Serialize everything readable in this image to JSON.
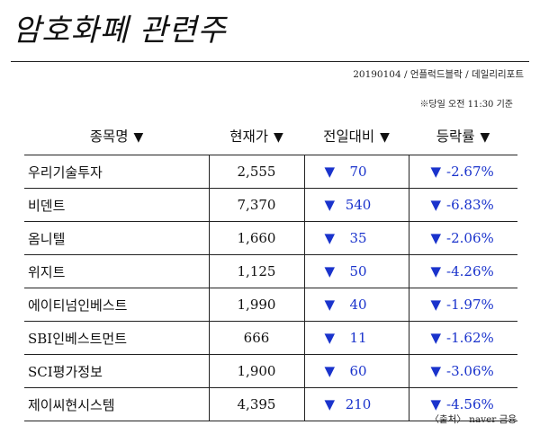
{
  "title": "암호화폐 관련주",
  "meta": "20190104 / 언플럭드블락 / 데일리리포트",
  "as_of": "※당일 오전 11:30 기준",
  "headers": [
    "종목명",
    "현재가",
    "전일대비",
    "등락률"
  ],
  "header_arrow": "▼",
  "down_arrow": "▼",
  "rows": [
    {
      "name": "우리기술투자",
      "price": "2,555",
      "change": "70",
      "rate": "-2.67%"
    },
    {
      "name": "비덴트",
      "price": "7,370",
      "change": "540",
      "rate": "-6.83%"
    },
    {
      "name": "옴니텔",
      "price": "1,660",
      "change": "35",
      "rate": "-2.06%"
    },
    {
      "name": "위지트",
      "price": "1,125",
      "change": "50",
      "rate": "-4.26%"
    },
    {
      "name": "에이티넘인베스트",
      "price": "1,990",
      "change": "40",
      "rate": "-1.97%"
    },
    {
      "name": "SBI인베스트먼트",
      "price": "666",
      "change": "11",
      "rate": "-1.62%"
    },
    {
      "name": "SCI평가정보",
      "price": "1,900",
      "change": "60",
      "rate": "-3.06%"
    },
    {
      "name": "제이씨현시스템",
      "price": "4,395",
      "change": "210",
      "rate": "-4.56%"
    }
  ],
  "source": "〈출처〉 naver 금융",
  "colors": {
    "down": "#1a33cc",
    "text": "#111111"
  }
}
